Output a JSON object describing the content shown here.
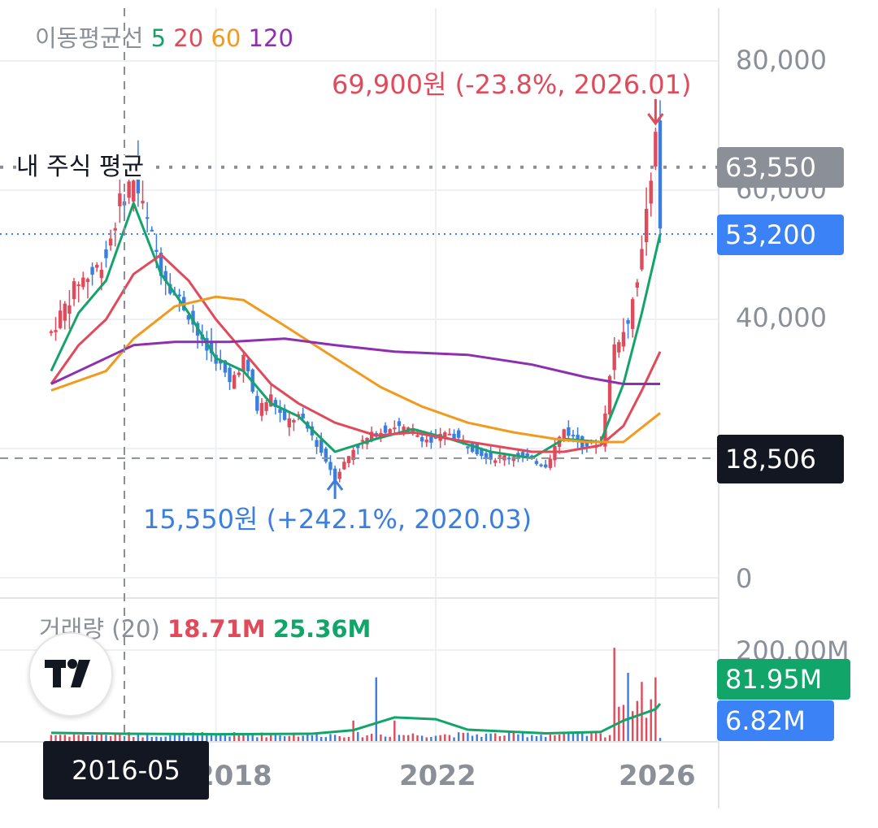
{
  "legend": {
    "ma_title": "이동평균선",
    "ma_periods": [
      "5",
      "20",
      "60",
      "120"
    ],
    "ma_colors": [
      "#16a36b",
      "#e14a5a",
      "#f39a1c",
      "#8e2fb0"
    ],
    "volume_title": "거래량 (20)",
    "volume_down": "18.71M",
    "volume_up": "25.36M"
  },
  "price_axis": {
    "ticks": [
      "80,000",
      "60,000",
      "40,000",
      "0"
    ]
  },
  "volume_axis": {
    "ticks": [
      "200.00M"
    ]
  },
  "x_axis": {
    "ticks": [
      "2018",
      "2022",
      "2026"
    ]
  },
  "crosshair_label": "2016-05",
  "avg_line_label": "내 주식 평균",
  "badges": {
    "avg_price": "63,550",
    "current_price": "53,200",
    "crosshair_price": "18,506",
    "volume_ma": "81.95M",
    "volume_current": "6.82M"
  },
  "annotations": {
    "high": "69,900원 (-23.8%, 2026.01)",
    "low": "15,550원 (+242.1%, 2020.03)"
  },
  "colors": {
    "up": "#e14a5a",
    "down": "#3a7ee0",
    "avg_badge": "#8a8f98",
    "current_badge": "#3b82f6",
    "crosshair_badge": "#131722",
    "volume_ma_badge": "#12a56a",
    "volume_badge": "#3b82f6"
  },
  "chart_data": {
    "type": "candlestick",
    "interval": "monthly",
    "x_range": [
      "2015-01",
      "2026-02"
    ],
    "ylim": [
      0,
      80000
    ],
    "average_price": 63550,
    "current_price": 53200,
    "crosshair": {
      "date": "2016-05",
      "price": 18506
    },
    "high_marker": {
      "date": "2026.01",
      "price": 69900,
      "change_pct": -23.8
    },
    "low_marker": {
      "date": "2020.03",
      "price": 15550,
      "change_pct": 242.1
    },
    "close_series": [
      {
        "x": "2015-01",
        "y": 38000
      },
      {
        "x": "2015-04",
        "y": 42000
      },
      {
        "x": "2015-07",
        "y": 46000
      },
      {
        "x": "2015-10",
        "y": 47000
      },
      {
        "x": "2016-01",
        "y": 50000
      },
      {
        "x": "2016-04",
        "y": 58000
      },
      {
        "x": "2016-07",
        "y": 62000
      },
      {
        "x": "2016-10",
        "y": 55000
      },
      {
        "x": "2017-01",
        "y": 48000
      },
      {
        "x": "2017-04",
        "y": 44000
      },
      {
        "x": "2017-07",
        "y": 41000
      },
      {
        "x": "2017-10",
        "y": 36000
      },
      {
        "x": "2018-01",
        "y": 34000
      },
      {
        "x": "2018-04",
        "y": 30000
      },
      {
        "x": "2018-07",
        "y": 34000
      },
      {
        "x": "2018-10",
        "y": 26000
      },
      {
        "x": "2019-01",
        "y": 28000
      },
      {
        "x": "2019-04",
        "y": 24000
      },
      {
        "x": "2019-07",
        "y": 25000
      },
      {
        "x": "2019-10",
        "y": 22000
      },
      {
        "x": "2020-03",
        "y": 15550
      },
      {
        "x": "2020-07",
        "y": 20000
      },
      {
        "x": "2020-12",
        "y": 22500
      },
      {
        "x": "2021-04",
        "y": 23500
      },
      {
        "x": "2021-08",
        "y": 22500
      },
      {
        "x": "2021-12",
        "y": 21000
      },
      {
        "x": "2022-04",
        "y": 22500
      },
      {
        "x": "2022-08",
        "y": 20500
      },
      {
        "x": "2023-01",
        "y": 18500
      },
      {
        "x": "2023-07",
        "y": 19000
      },
      {
        "x": "2024-01",
        "y": 17500
      },
      {
        "x": "2024-05",
        "y": 23000
      },
      {
        "x": "2024-09",
        "y": 20500
      },
      {
        "x": "2025-01",
        "y": 21000
      },
      {
        "x": "2025-04",
        "y": 36000
      },
      {
        "x": "2025-07",
        "y": 40000
      },
      {
        "x": "2025-10",
        "y": 50000
      },
      {
        "x": "2026-01",
        "y": 69900
      },
      {
        "x": "2026-02",
        "y": 53200
      }
    ],
    "moving_averages": [
      {
        "name": "5",
        "color": "#16a36b",
        "points": [
          {
            "x": "2015-01",
            "y": 32000
          },
          {
            "x": "2015-07",
            "y": 41000
          },
          {
            "x": "2016-01",
            "y": 46000
          },
          {
            "x": "2016-07",
            "y": 58000
          },
          {
            "x": "2017-01",
            "y": 47000
          },
          {
            "x": "2017-07",
            "y": 41000
          },
          {
            "x": "2018-01",
            "y": 34000
          },
          {
            "x": "2018-07",
            "y": 32000
          },
          {
            "x": "2019-01",
            "y": 27000
          },
          {
            "x": "2019-07",
            "y": 25000
          },
          {
            "x": "2020-03",
            "y": 19500
          },
          {
            "x": "2020-12",
            "y": 21500
          },
          {
            "x": "2021-08",
            "y": 23000
          },
          {
            "x": "2022-04",
            "y": 21500
          },
          {
            "x": "2023-01",
            "y": 19500
          },
          {
            "x": "2023-10",
            "y": 18500
          },
          {
            "x": "2024-05",
            "y": 21500
          },
          {
            "x": "2025-01",
            "y": 21000
          },
          {
            "x": "2025-06",
            "y": 30000
          },
          {
            "x": "2025-10",
            "y": 41000
          },
          {
            "x": "2026-02",
            "y": 53200
          }
        ]
      },
      {
        "name": "20",
        "color": "#e14a5a",
        "points": [
          {
            "x": "2015-01",
            "y": 30000
          },
          {
            "x": "2015-07",
            "y": 36000
          },
          {
            "x": "2016-01",
            "y": 40000
          },
          {
            "x": "2016-07",
            "y": 47000
          },
          {
            "x": "2017-01",
            "y": 50000
          },
          {
            "x": "2017-07",
            "y": 46000
          },
          {
            "x": "2018-01",
            "y": 40000
          },
          {
            "x": "2018-07",
            "y": 35000
          },
          {
            "x": "2019-01",
            "y": 30000
          },
          {
            "x": "2019-07",
            "y": 27000
          },
          {
            "x": "2020-03",
            "y": 24000
          },
          {
            "x": "2020-12",
            "y": 22000
          },
          {
            "x": "2021-08",
            "y": 22500
          },
          {
            "x": "2022-04",
            "y": 21500
          },
          {
            "x": "2023-01",
            "y": 20500
          },
          {
            "x": "2023-10",
            "y": 19500
          },
          {
            "x": "2024-05",
            "y": 19500
          },
          {
            "x": "2025-01",
            "y": 20500
          },
          {
            "x": "2025-06",
            "y": 23500
          },
          {
            "x": "2025-10",
            "y": 29000
          },
          {
            "x": "2026-02",
            "y": 35000
          }
        ]
      },
      {
        "name": "60",
        "color": "#f39a1c",
        "points": [
          {
            "x": "2015-01",
            "y": 29000
          },
          {
            "x": "2016-01",
            "y": 32000
          },
          {
            "x": "2016-07",
            "y": 37000
          },
          {
            "x": "2017-04",
            "y": 42000
          },
          {
            "x": "2018-01",
            "y": 43500
          },
          {
            "x": "2018-07",
            "y": 43000
          },
          {
            "x": "2019-04",
            "y": 39000
          },
          {
            "x": "2020-03",
            "y": 34000
          },
          {
            "x": "2021-01",
            "y": 29500
          },
          {
            "x": "2021-10",
            "y": 26500
          },
          {
            "x": "2022-08",
            "y": 24000
          },
          {
            "x": "2023-06",
            "y": 22500
          },
          {
            "x": "2024-03",
            "y": 21500
          },
          {
            "x": "2024-10",
            "y": 21000
          },
          {
            "x": "2025-06",
            "y": 21000
          },
          {
            "x": "2026-02",
            "y": 25500
          }
        ]
      },
      {
        "name": "120",
        "color": "#8e2fb0",
        "points": [
          {
            "x": "2015-01",
            "y": 30000
          },
          {
            "x": "2015-10",
            "y": 33000
          },
          {
            "x": "2016-07",
            "y": 36000
          },
          {
            "x": "2017-04",
            "y": 36500
          },
          {
            "x": "2018-04",
            "y": 36500
          },
          {
            "x": "2019-04",
            "y": 37000
          },
          {
            "x": "2020-03",
            "y": 36000
          },
          {
            "x": "2021-04",
            "y": 35000
          },
          {
            "x": "2022-08",
            "y": 34500
          },
          {
            "x": "2023-10",
            "y": 33000
          },
          {
            "x": "2024-10",
            "y": 31000
          },
          {
            "x": "2025-06",
            "y": 30000
          },
          {
            "x": "2026-02",
            "y": 30000
          }
        ]
      }
    ],
    "volume": {
      "ylim": [
        0,
        200000000
      ],
      "ma_current": 81950000,
      "current": 6820000,
      "spikes": [
        {
          "x": "2020-07",
          "y": 45000000
        },
        {
          "x": "2020-12",
          "y": 140000000
        },
        {
          "x": "2021-04",
          "y": 45000000
        },
        {
          "x": "2025-04",
          "y": 205000000
        },
        {
          "x": "2025-07",
          "y": 150000000
        },
        {
          "x": "2025-10",
          "y": 130000000
        },
        {
          "x": "2026-01",
          "y": 140000000
        }
      ],
      "ma_line": [
        {
          "x": "2015-01",
          "y": 18000000
        },
        {
          "x": "2016-05",
          "y": 16000000
        },
        {
          "x": "2018-01",
          "y": 15000000
        },
        {
          "x": "2019-10",
          "y": 16000000
        },
        {
          "x": "2020-07",
          "y": 24000000
        },
        {
          "x": "2021-04",
          "y": 52000000
        },
        {
          "x": "2022-01",
          "y": 48000000
        },
        {
          "x": "2022-08",
          "y": 25000000
        },
        {
          "x": "2024-01",
          "y": 17000000
        },
        {
          "x": "2025-01",
          "y": 20000000
        },
        {
          "x": "2025-06",
          "y": 45000000
        },
        {
          "x": "2026-01",
          "y": 70000000
        },
        {
          "x": "2026-02",
          "y": 81950000
        }
      ]
    }
  }
}
